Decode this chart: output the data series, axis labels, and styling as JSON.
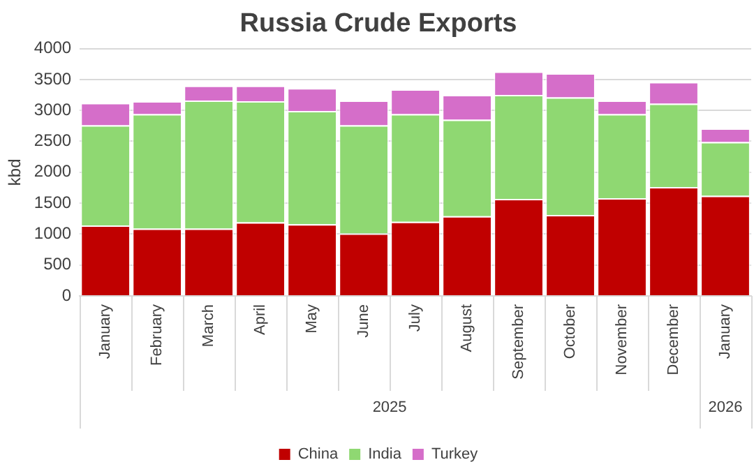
{
  "chart_data": {
    "type": "bar",
    "title": "Russia Crude Exports",
    "ylabel": "kbd",
    "stacked": true,
    "categories": [
      "January",
      "February",
      "March",
      "April",
      "May",
      "June",
      "July",
      "August",
      "September",
      "October",
      "November",
      "December",
      "January"
    ],
    "series": [
      {
        "name": "China",
        "color": "#c00000",
        "values": [
          1140,
          1090,
          1090,
          1190,
          1160,
          1010,
          1200,
          1290,
          1570,
          1310,
          1580,
          1760,
          1620
        ]
      },
      {
        "name": "India",
        "color": "#8fd872",
        "values": [
          1620,
          1850,
          2070,
          1960,
          1830,
          1750,
          1740,
          1560,
          1680,
          1900,
          1360,
          1350,
          870
        ]
      },
      {
        "name": "Turkey",
        "color": "#d56ec9",
        "values": [
          360,
          210,
          240,
          250,
          370,
          400,
          400,
          400,
          380,
          390,
          220,
          350,
          220
        ]
      }
    ],
    "ylim": [
      0,
      4000
    ],
    "yticks": [
      0,
      500,
      1000,
      1500,
      2000,
      2500,
      3000,
      3500,
      4000
    ],
    "grid": "y",
    "legend": "bottom",
    "annotations": [
      "2025",
      "2026"
    ]
  }
}
